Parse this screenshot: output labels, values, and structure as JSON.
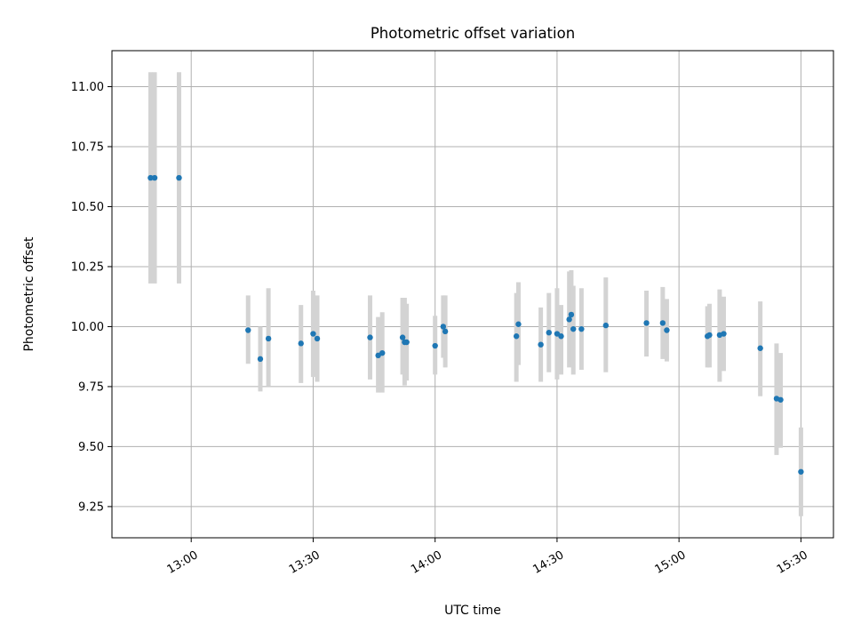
{
  "chart_data": {
    "type": "scatter",
    "title": "Photometric offset variation",
    "xlabel": "UTC time",
    "ylabel": "Photometric offset",
    "x_ticks": [
      "13:00",
      "13:30",
      "14:00",
      "14:30",
      "15:00",
      "15:30"
    ],
    "x_tick_minutes": [
      780,
      810,
      840,
      870,
      900,
      930
    ],
    "y_ticks": [
      "9.25",
      "9.50",
      "9.75",
      "10.00",
      "10.25",
      "10.50",
      "10.75",
      "11.00"
    ],
    "y_tick_values": [
      9.25,
      9.5,
      9.75,
      10.0,
      10.25,
      10.5,
      10.75,
      11.0
    ],
    "xlim": [
      "12:40:30",
      "15:38"
    ],
    "ylim": [
      9.12,
      11.15
    ],
    "grid": true,
    "marker_color": "#1f77b4",
    "errorbar_color": "#d3d3d3",
    "series": [
      {
        "points": [
          {
            "t": "12:50",
            "y": 10.62,
            "lo": 10.18,
            "hi": 11.06
          },
          {
            "t": "12:51",
            "y": 10.62,
            "lo": 10.18,
            "hi": 11.06
          },
          {
            "t": "12:57",
            "y": 10.62,
            "lo": 10.18,
            "hi": 11.06
          },
          {
            "t": "13:14",
            "y": 9.985,
            "lo": 9.845,
            "hi": 10.13
          },
          {
            "t": "13:17",
            "y": 9.865,
            "lo": 9.73,
            "hi": 10.0
          },
          {
            "t": "13:19",
            "y": 9.95,
            "lo": 9.75,
            "hi": 10.16
          },
          {
            "t": "13:27",
            "y": 9.93,
            "lo": 9.765,
            "hi": 10.09
          },
          {
            "t": "13:30",
            "y": 9.97,
            "lo": 9.79,
            "hi": 10.15
          },
          {
            "t": "13:31",
            "y": 9.95,
            "lo": 9.77,
            "hi": 10.13
          },
          {
            "t": "13:44",
            "y": 9.955,
            "lo": 9.78,
            "hi": 10.13
          },
          {
            "t": "13:46",
            "y": 9.88,
            "lo": 9.725,
            "hi": 10.04
          },
          {
            "t": "13:47",
            "y": 9.89,
            "lo": 9.725,
            "hi": 10.06
          },
          {
            "t": "13:52",
            "y": 9.955,
            "lo": 9.8,
            "hi": 10.12
          },
          {
            "t": "13:52:30",
            "y": 9.935,
            "lo": 9.755,
            "hi": 10.12
          },
          {
            "t": "13:53",
            "y": 9.935,
            "lo": 9.775,
            "hi": 10.095
          },
          {
            "t": "14:00",
            "y": 9.92,
            "lo": 9.8,
            "hi": 10.045
          },
          {
            "t": "14:02",
            "y": 10.0,
            "lo": 9.87,
            "hi": 10.13
          },
          {
            "t": "14:02:30",
            "y": 9.98,
            "lo": 9.83,
            "hi": 10.13
          },
          {
            "t": "14:20",
            "y": 9.96,
            "lo": 9.77,
            "hi": 10.14
          },
          {
            "t": "14:20:30",
            "y": 10.01,
            "lo": 9.84,
            "hi": 10.185
          },
          {
            "t": "14:26",
            "y": 9.925,
            "lo": 9.77,
            "hi": 10.08
          },
          {
            "t": "14:28",
            "y": 9.975,
            "lo": 9.81,
            "hi": 10.14
          },
          {
            "t": "14:30",
            "y": 9.97,
            "lo": 9.78,
            "hi": 10.16
          },
          {
            "t": "14:31",
            "y": 9.96,
            "lo": 9.8,
            "hi": 10.09
          },
          {
            "t": "14:33",
            "y": 10.03,
            "lo": 9.83,
            "hi": 10.23
          },
          {
            "t": "14:33:30",
            "y": 10.05,
            "lo": 9.85,
            "hi": 10.235
          },
          {
            "t": "14:34",
            "y": 9.99,
            "lo": 9.8,
            "hi": 10.17
          },
          {
            "t": "14:36",
            "y": 9.99,
            "lo": 9.82,
            "hi": 10.16
          },
          {
            "t": "14:42",
            "y": 10.005,
            "lo": 9.81,
            "hi": 10.205
          },
          {
            "t": "14:52",
            "y": 10.015,
            "lo": 9.875,
            "hi": 10.15
          },
          {
            "t": "14:56",
            "y": 10.015,
            "lo": 9.865,
            "hi": 10.165
          },
          {
            "t": "14:57",
            "y": 9.985,
            "lo": 9.855,
            "hi": 10.115
          },
          {
            "t": "15:07",
            "y": 9.96,
            "lo": 9.83,
            "hi": 10.085
          },
          {
            "t": "15:07:30",
            "y": 9.965,
            "lo": 9.83,
            "hi": 10.095
          },
          {
            "t": "15:10",
            "y": 9.965,
            "lo": 9.77,
            "hi": 10.155
          },
          {
            "t": "15:11",
            "y": 9.97,
            "lo": 9.815,
            "hi": 10.125
          },
          {
            "t": "15:20",
            "y": 9.91,
            "lo": 9.71,
            "hi": 10.105
          },
          {
            "t": "15:24",
            "y": 9.7,
            "lo": 9.465,
            "hi": 9.93
          },
          {
            "t": "15:25",
            "y": 9.695,
            "lo": 9.495,
            "hi": 9.89
          },
          {
            "t": "15:30",
            "y": 9.395,
            "lo": 9.21,
            "hi": 9.58
          }
        ]
      }
    ]
  }
}
